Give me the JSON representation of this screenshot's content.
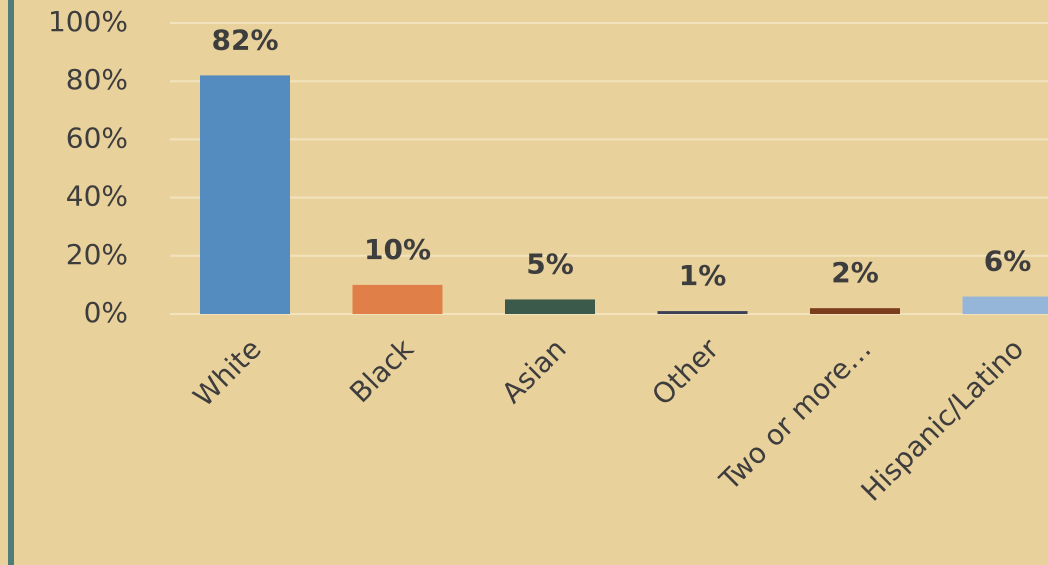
{
  "chart_data": {
    "type": "bar",
    "categories": [
      "White",
      "Black",
      "Asian",
      "Other",
      "Two or more…",
      "Hispanic/Latino"
    ],
    "values": [
      82,
      10,
      5,
      1,
      2,
      6
    ],
    "value_labels": [
      "82%",
      "10%",
      "5%",
      "1%",
      "2%",
      "6%"
    ],
    "colors": [
      "#548CBF",
      "#E07F47",
      "#3B5A4B",
      "#3C4156",
      "#7A3E1D",
      "#95B6D9"
    ],
    "ylim": [
      0,
      100
    ],
    "yticks": [
      {
        "value": 0,
        "label": "0%"
      },
      {
        "value": 20,
        "label": "20%"
      },
      {
        "value": 40,
        "label": "40%"
      },
      {
        "value": 60,
        "label": "60%"
      },
      {
        "value": 80,
        "label": "80%"
      },
      {
        "value": 100,
        "label": "100%"
      }
    ],
    "grid": true
  }
}
